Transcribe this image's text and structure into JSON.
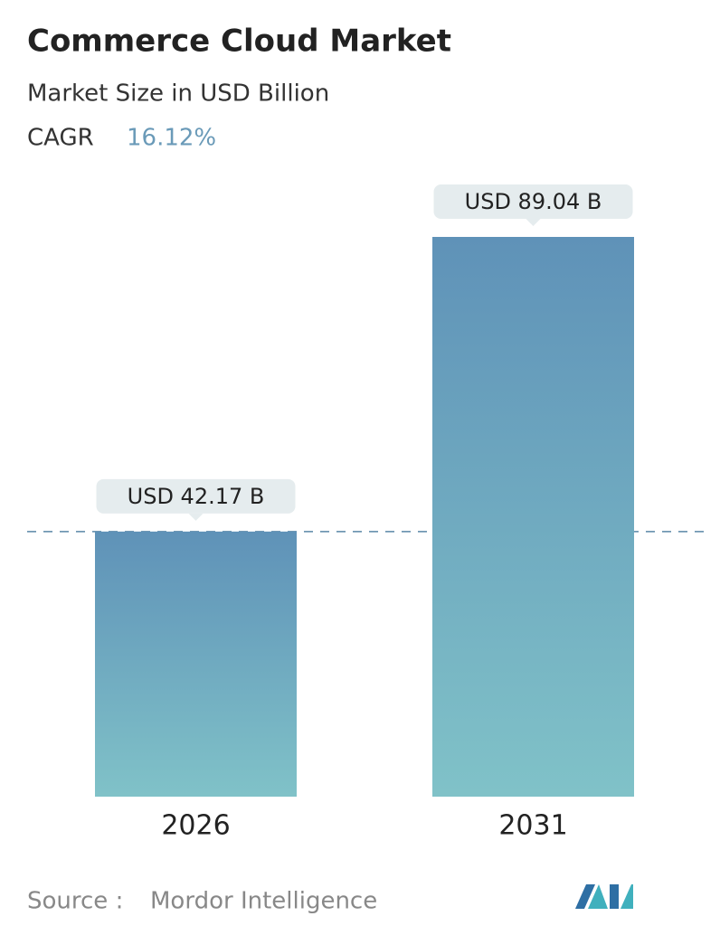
{
  "chart_data": {
    "type": "bar",
    "title": "Commerce Cloud Market",
    "subtitle": "Market Size in USD Billion",
    "cagr_label": "CAGR",
    "cagr": "16.12%",
    "categories": [
      "2026",
      "2031"
    ],
    "values": [
      42.17,
      89.04
    ],
    "value_labels": [
      "USD 42.17 B",
      "USD 89.04 B"
    ],
    "color": "#6a9cbc",
    "source_label": "Source :",
    "source": "Mordor Intelligence"
  }
}
